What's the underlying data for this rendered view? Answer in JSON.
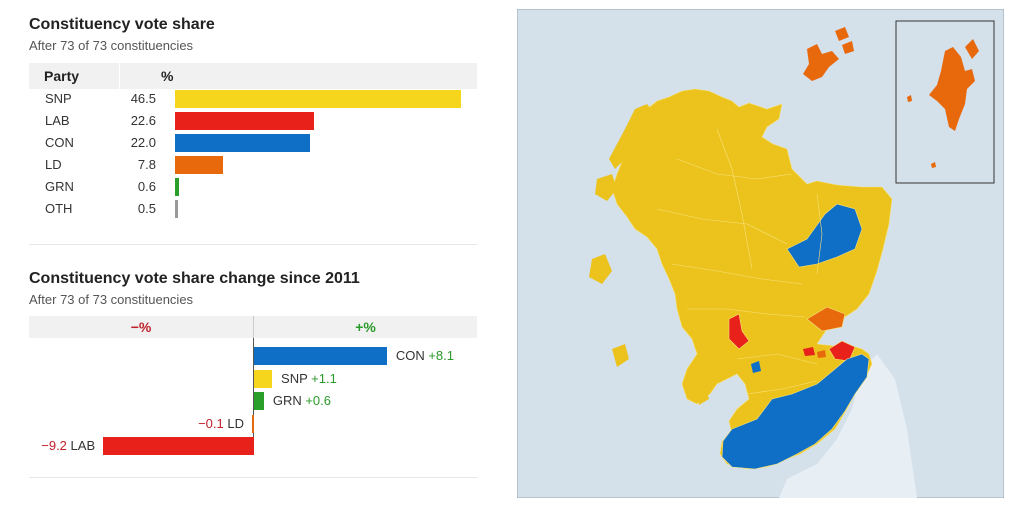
{
  "share": {
    "title": "Constituency vote share",
    "subtitle": "After 73 of 73 constituencies",
    "col_party": "Party",
    "col_pct": "%"
  },
  "change": {
    "title": "Constituency vote share change since 2011",
    "subtitle": "After 73 of 73 constituencies",
    "neg_header": "−%",
    "pos_header": "+%"
  },
  "colors": {
    "SNP": "#f5d61c",
    "LAB": "#e8221a",
    "CON": "#0f6fc6",
    "LD": "#e8680c",
    "GRN": "#2aa02a",
    "OTH": "#999999",
    "sea": "#d4e0ea",
    "england": "#e7eef4"
  },
  "chart_data": [
    {
      "type": "bar",
      "title": "Constituency vote share",
      "subtitle": "After 73 of 73 constituencies",
      "categories": [
        "SNP",
        "LAB",
        "CON",
        "LD",
        "GRN",
        "OTH"
      ],
      "values": [
        46.5,
        22.6,
        22.0,
        7.8,
        0.6,
        0.5
      ],
      "value_labels": [
        "46.5",
        "22.6",
        "22.0",
        "7.8",
        "0.6",
        "0.5"
      ],
      "xlabel": "%",
      "ylabel": "Party",
      "xlim": [
        0,
        46.5
      ],
      "orientation": "horizontal"
    },
    {
      "type": "bar",
      "title": "Constituency vote share change since 2011",
      "subtitle": "After 73 of 73 constituencies",
      "categories": [
        "CON",
        "SNP",
        "GRN",
        "LD",
        "LAB"
      ],
      "values": [
        8.1,
        1.1,
        0.6,
        -0.1,
        -9.2
      ],
      "value_labels": [
        "+8.1",
        "+1.1",
        "+0.6",
        "−0.1",
        "−9.2"
      ],
      "orientation": "horizontal",
      "diverging": true,
      "xlim": [
        -9.2,
        8.1
      ]
    }
  ],
  "map": {
    "regions": "Scottish Parliament constituencies coloured by winning party",
    "inset": "Shetland"
  }
}
